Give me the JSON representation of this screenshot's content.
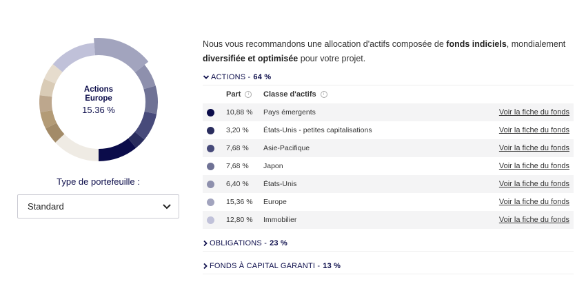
{
  "donut": {
    "center_title_line1": "Actions",
    "center_title_line2": "Europe",
    "center_value": "15.36 %",
    "highlighted": "Europe",
    "extra_segments": [
      {
        "group": "Obligations",
        "value": 23,
        "colors": [
          "#e6dccd",
          "#d9cbb6",
          "#bda78d",
          "#b39b76",
          "#a38b68"
        ]
      },
      {
        "group": "Fonds à capital garanti",
        "value": 13,
        "colors": [
          "#efebe4"
        ]
      }
    ]
  },
  "portfolio": {
    "label": "Type de portefeuille :",
    "selected": "Standard"
  },
  "intro": {
    "p1": "Nous vous recommandons une allocation d'actifs composée de ",
    "b1": "fonds indiciels",
    "p2": ", mondialement ",
    "b2": "diversifiée et optimisée",
    "p3": " pour votre projet."
  },
  "sections": [
    {
      "label": "ACTIONS",
      "pct": "64 %",
      "expanded": true
    },
    {
      "label": "OBLIGATIONS",
      "pct": "23 %",
      "expanded": false
    },
    {
      "label": "FONDS À CAPITAL GARANTI",
      "pct": "13 %",
      "expanded": false
    }
  ],
  "table": {
    "col_part": "Part",
    "col_class": "Classe d'actifs",
    "link_label": "Voir la fiche du fonds",
    "rows": [
      {
        "part": "10,88 %",
        "value": 10.88,
        "class": "Pays émergents",
        "color": "#0b0c4a"
      },
      {
        "part": "3,20 %",
        "value": 3.2,
        "class": "États-Unis - petites capitalisations",
        "color": "#2a2d5e"
      },
      {
        "part": "7,68 %",
        "value": 7.68,
        "class": "Asie-Pacifique",
        "color": "#474a7a"
      },
      {
        "part": "7,68 %",
        "value": 7.68,
        "class": "Japon",
        "color": "#6f7295"
      },
      {
        "part": "6,40 %",
        "value": 6.4,
        "class": "États-Unis",
        "color": "#8e90ad"
      },
      {
        "part": "15,36 %",
        "value": 15.36,
        "class": "Europe",
        "color": "#a2a4be"
      },
      {
        "part": "12,80 %",
        "value": 12.8,
        "class": "Immobilier",
        "color": "#c0c1d9"
      }
    ]
  }
}
